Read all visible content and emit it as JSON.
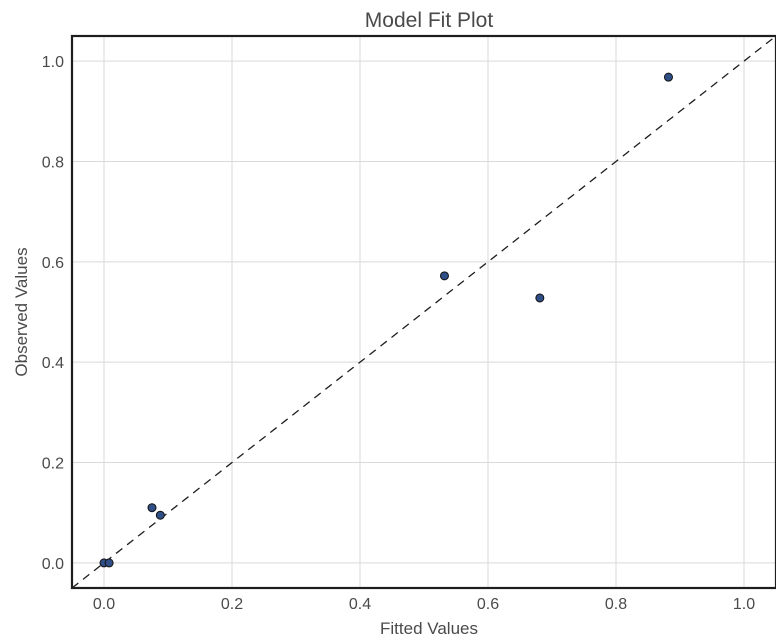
{
  "chart_data": {
    "type": "scatter",
    "title": "Model Fit Plot",
    "xlabel": "Fitted Values",
    "ylabel": "Observed Values",
    "xlim": [
      -0.05,
      1.05
    ],
    "ylim": [
      -0.05,
      1.05
    ],
    "x_ticks": [
      "0.0",
      "0.2",
      "0.4",
      "0.6",
      "0.8",
      "1.0"
    ],
    "y_ticks": [
      "0.0",
      "0.2",
      "0.4",
      "0.6",
      "0.8",
      "1.0"
    ],
    "grid": true,
    "reference_line": "y = x (dashed)",
    "points": [
      {
        "x": 0.0,
        "y": 0.0
      },
      {
        "x": 0.008,
        "y": 0.0
      },
      {
        "x": 0.075,
        "y": 0.11
      },
      {
        "x": 0.088,
        "y": 0.095
      },
      {
        "x": 0.532,
        "y": 0.572
      },
      {
        "x": 0.681,
        "y": 0.528
      },
      {
        "x": 0.882,
        "y": 0.968
      }
    ]
  },
  "colors": {
    "point_fill": "#2f4f86",
    "point_edge": "#111111",
    "grid": "#d9d9d9",
    "text": "#4a4a4a"
  }
}
